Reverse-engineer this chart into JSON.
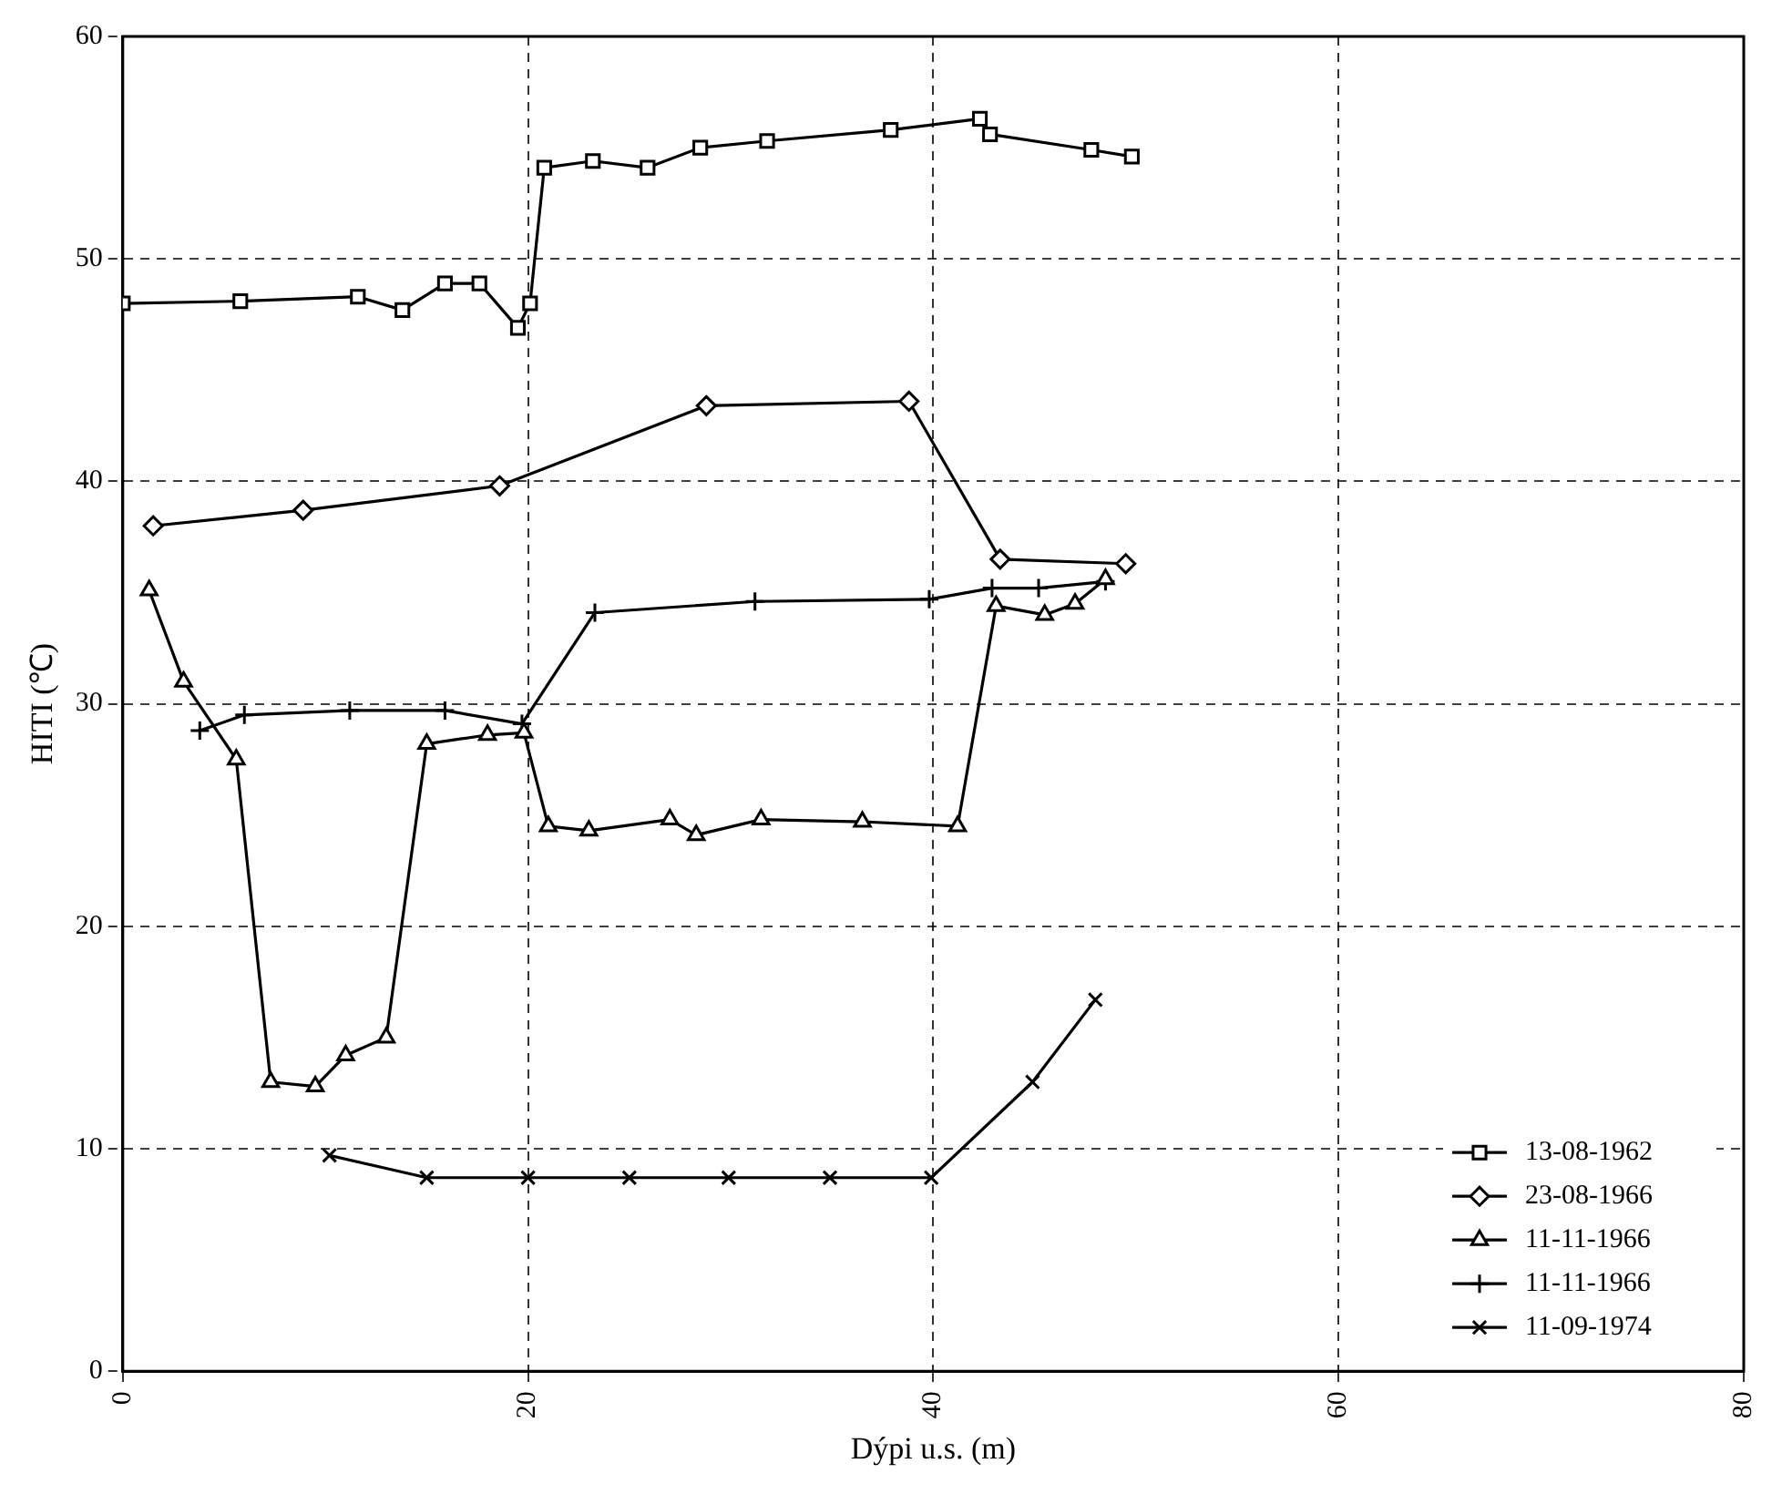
{
  "chart_data": {
    "type": "line",
    "xlabel": "Dýpi u.s. (m)",
    "ylabel": "HITI (℃)",
    "xlim": [
      0,
      80
    ],
    "xticks": [
      0,
      20,
      40,
      60,
      80
    ],
    "ylim": [
      0,
      60
    ],
    "yticks": [
      0,
      10,
      20,
      30,
      40,
      50,
      60
    ],
    "grid": true,
    "line_style": "solid",
    "legend": "bottom right",
    "series": [
      {
        "name": "13-08-1962",
        "color": "#000000",
        "marker": "square",
        "x": [
          0,
          5.8,
          11.6,
          13.8,
          15.9,
          17.6,
          19.5,
          20.1,
          20.8,
          23.2,
          25.9,
          28.5,
          31.8,
          37.9,
          42.3,
          42.8,
          47.8,
          49.8
        ],
        "values": [
          48,
          48.1,
          48.3,
          47.7,
          48.9,
          48.9,
          46.9,
          48,
          54.1,
          54.4,
          54.1,
          55,
          55.3,
          55.8,
          56.3,
          55.6,
          54.9,
          54.6
        ]
      },
      {
        "name": "23-08-1966",
        "color": "#000000",
        "marker": "diamond",
        "x": [
          1.5,
          8.9,
          18.6,
          28.8,
          38.8,
          43.3,
          49.5
        ],
        "values": [
          38,
          38.7,
          39.8,
          43.4,
          43.6,
          36.5,
          36.3
        ]
      },
      {
        "name": "11-11-1966",
        "color": "#000000",
        "marker": "triangle",
        "x": [
          1.3,
          3,
          5.6,
          7.3,
          9.5,
          11,
          13,
          15,
          18,
          19.8,
          21,
          23,
          27,
          28.3,
          31.5,
          36.5,
          41.2,
          43.1,
          45.5,
          47,
          48.5
        ],
        "values": [
          35.1,
          31,
          27.5,
          13,
          12.8,
          14.2,
          15,
          28.2,
          28.6,
          28.7,
          24.5,
          24.3,
          24.8,
          24.1,
          24.8,
          24.7,
          24.5,
          34.4,
          34,
          34.5,
          35.6
        ]
      },
      {
        "name": "11-11-1966",
        "color": "#000000",
        "marker": "cross",
        "x": [
          3.8,
          6,
          11.2,
          15.9,
          19.7,
          23.3,
          31.2,
          39.8,
          42.9,
          45.2,
          48.5
        ],
        "values": [
          28.8,
          29.5,
          29.7,
          29.7,
          29.1,
          34.1,
          34.6,
          34.7,
          35.2,
          35.2,
          35.5
        ]
      },
      {
        "name": "11-09-1974",
        "color": "#000000",
        "marker": "x",
        "x": [
          10.2,
          15,
          20,
          25,
          29.9,
          34.9,
          39.9,
          44.9,
          48
        ],
        "values": [
          9.7,
          8.7,
          8.7,
          8.7,
          8.7,
          8.7,
          8.7,
          13,
          16.7
        ]
      }
    ]
  }
}
